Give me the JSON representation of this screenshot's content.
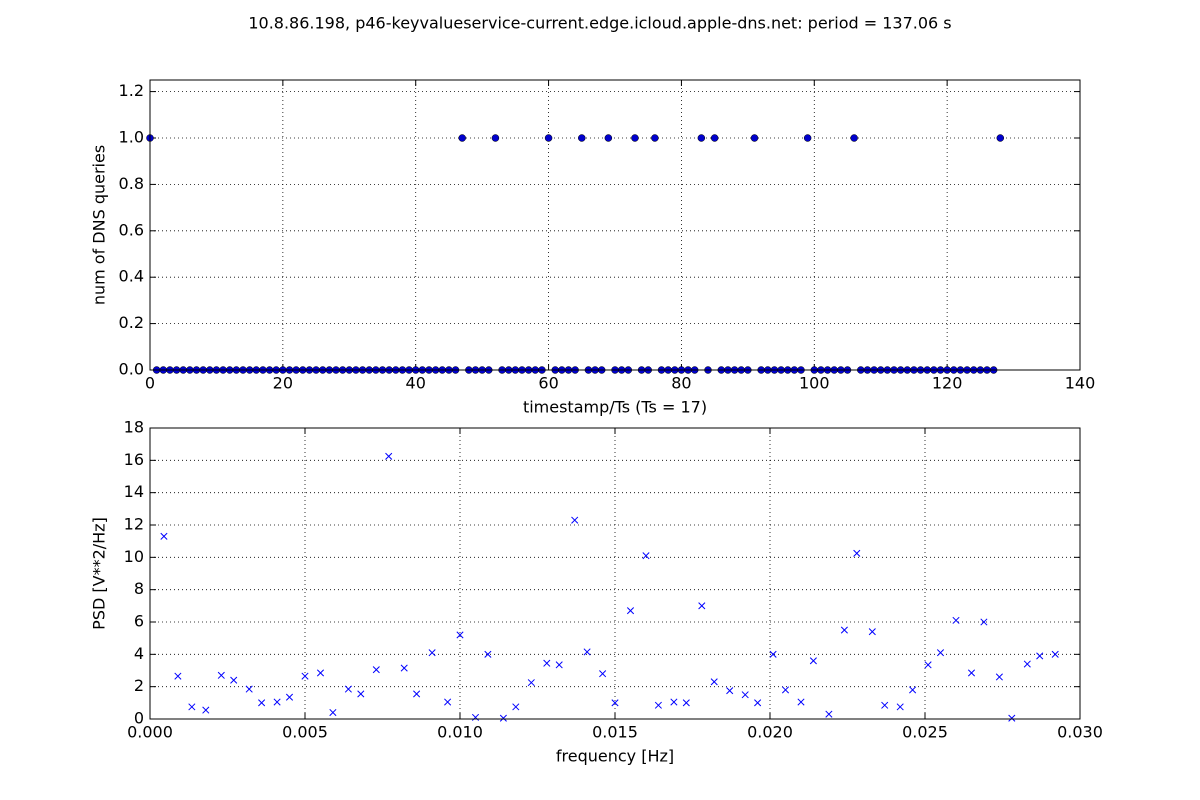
{
  "title": "10.8.86.198, p46-keyvalueservice-current.edge.icloud.apple-dns.net: period = 137.06 s",
  "chart_data": [
    {
      "type": "scatter",
      "marker": "o",
      "grid": true,
      "xlabel": "timestamp/Ts (Ts = 17)",
      "ylabel": "num of DNS queries",
      "xlim": [
        0,
        140
      ],
      "xticks": [
        0,
        20,
        40,
        60,
        80,
        100,
        120,
        140
      ],
      "ylim": [
        0,
        1.25
      ],
      "yticks": [
        {
          "value": 0,
          "label": "0.0"
        },
        {
          "value": 0.2,
          "label": "0.2"
        },
        {
          "value": 0.4,
          "label": "0.4"
        },
        {
          "value": 0.6,
          "label": "0.6"
        },
        {
          "value": 0.8,
          "label": "0.8"
        },
        {
          "value": 1,
          "label": "1.0"
        },
        {
          "value": 1.2,
          "label": "1.2"
        }
      ],
      "color": "#0000cc",
      "x": [
        0,
        1,
        2,
        3,
        4,
        5,
        6,
        7,
        8,
        9,
        10,
        11,
        12,
        13,
        14,
        15,
        16,
        17,
        18,
        19,
        20,
        21,
        22,
        23,
        24,
        25,
        26,
        27,
        28,
        29,
        30,
        31,
        32,
        33,
        34,
        35,
        36,
        37,
        38,
        39,
        40,
        41,
        42,
        43,
        44,
        45,
        46,
        47,
        48,
        49,
        50,
        51,
        52,
        53,
        54,
        55,
        56,
        57,
        58,
        59,
        60,
        61,
        62,
        63,
        64,
        65,
        66,
        67,
        68,
        69,
        70,
        71,
        72,
        73,
        74,
        75,
        76,
        77,
        78,
        79,
        80,
        81,
        82,
        83,
        84,
        85,
        86,
        87,
        88,
        89,
        90,
        91,
        92,
        93,
        94,
        95,
        96,
        97,
        98,
        99,
        100,
        101,
        102,
        103,
        104,
        105,
        106,
        107,
        108,
        109,
        110,
        111,
        112,
        113,
        114,
        115,
        116,
        117,
        118,
        119,
        120,
        121,
        122,
        123,
        124,
        125,
        126,
        127,
        128
      ],
      "values": [
        1,
        0,
        0,
        0,
        0,
        0,
        0,
        0,
        0,
        0,
        0,
        0,
        0,
        0,
        0,
        0,
        0,
        0,
        0,
        0,
        0,
        0,
        0,
        0,
        0,
        0,
        0,
        0,
        0,
        0,
        0,
        0,
        0,
        0,
        0,
        0,
        0,
        0,
        0,
        0,
        0,
        0,
        0,
        0,
        0,
        0,
        0,
        1,
        0,
        0,
        0,
        0,
        1,
        0,
        0,
        0,
        0,
        0,
        0,
        0,
        1,
        0,
        0,
        0,
        0,
        1,
        0,
        0,
        0,
        1,
        0,
        0,
        0,
        1,
        0,
        0,
        1,
        0,
        0,
        0,
        0,
        0,
        0,
        1,
        0,
        1,
        0,
        0,
        0,
        0,
        0,
        1,
        0,
        0,
        0,
        0,
        0,
        0,
        0,
        1,
        0,
        0,
        0,
        0,
        0,
        0,
        1,
        0,
        0,
        0,
        0,
        0,
        0,
        0,
        0,
        0,
        0,
        0,
        0,
        0,
        0,
        0,
        0,
        0,
        0,
        0,
        0,
        0,
        1
      ]
    },
    {
      "type": "scatter",
      "marker": "x",
      "grid": true,
      "xlabel": "frequency [Hz]",
      "ylabel": "PSD [V**2/Hz]",
      "xlim": [
        0,
        0.03
      ],
      "xticks": [
        {
          "value": 0,
          "label": "0.000"
        },
        {
          "value": 0.005,
          "label": "0.005"
        },
        {
          "value": 0.01,
          "label": "0.010"
        },
        {
          "value": 0.015,
          "label": "0.015"
        },
        {
          "value": 0.02,
          "label": "0.020"
        },
        {
          "value": 0.025,
          "label": "0.025"
        },
        {
          "value": 0.03,
          "label": "0.030"
        }
      ],
      "ylim": [
        0,
        18
      ],
      "yticks": [
        0,
        2,
        4,
        6,
        8,
        10,
        12,
        14,
        16,
        18
      ],
      "color": "#0000ff",
      "x": [
        0.00045,
        0.0009,
        0.00135,
        0.0018,
        0.0023,
        0.0027,
        0.0032,
        0.0036,
        0.0041,
        0.0045,
        0.005,
        0.0055,
        0.0059,
        0.0064,
        0.0068,
        0.0073,
        0.0077,
        0.0082,
        0.0086,
        0.0091,
        0.0096,
        0.01,
        0.0105,
        0.0109,
        0.0114,
        0.0118,
        0.0123,
        0.0128,
        0.0132,
        0.0137,
        0.0141,
        0.0146,
        0.015,
        0.0155,
        0.016,
        0.0164,
        0.0169,
        0.0173,
        0.0178,
        0.0182,
        0.0187,
        0.0192,
        0.0196,
        0.0201,
        0.0205,
        0.021,
        0.0214,
        0.0219,
        0.0224,
        0.0228,
        0.0233,
        0.0237,
        0.0242,
        0.0246,
        0.0251,
        0.0255,
        0.026,
        0.0265,
        0.0269,
        0.0274,
        0.0278,
        0.0283,
        0.0287,
        0.0292
      ],
      "values": [
        11.3,
        2.65,
        0.75,
        0.55,
        2.7,
        2.4,
        1.85,
        1.0,
        1.05,
        1.35,
        2.65,
        2.85,
        0.4,
        1.85,
        1.55,
        3.05,
        16.25,
        3.15,
        1.55,
        4.1,
        1.05,
        5.2,
        0.1,
        4.0,
        0.05,
        0.75,
        2.25,
        3.45,
        3.35,
        12.3,
        4.15,
        2.8,
        1.0,
        6.7,
        10.1,
        0.85,
        1.05,
        1.0,
        7.0,
        2.3,
        1.75,
        1.5,
        1.0,
        4.0,
        1.8,
        1.05,
        3.6,
        0.3,
        5.5,
        10.25,
        5.4,
        0.85,
        0.75,
        1.8,
        3.35,
        4.1,
        6.1,
        2.85,
        6.0,
        2.6,
        0.05,
        3.4,
        3.9,
        4.0
      ]
    }
  ]
}
